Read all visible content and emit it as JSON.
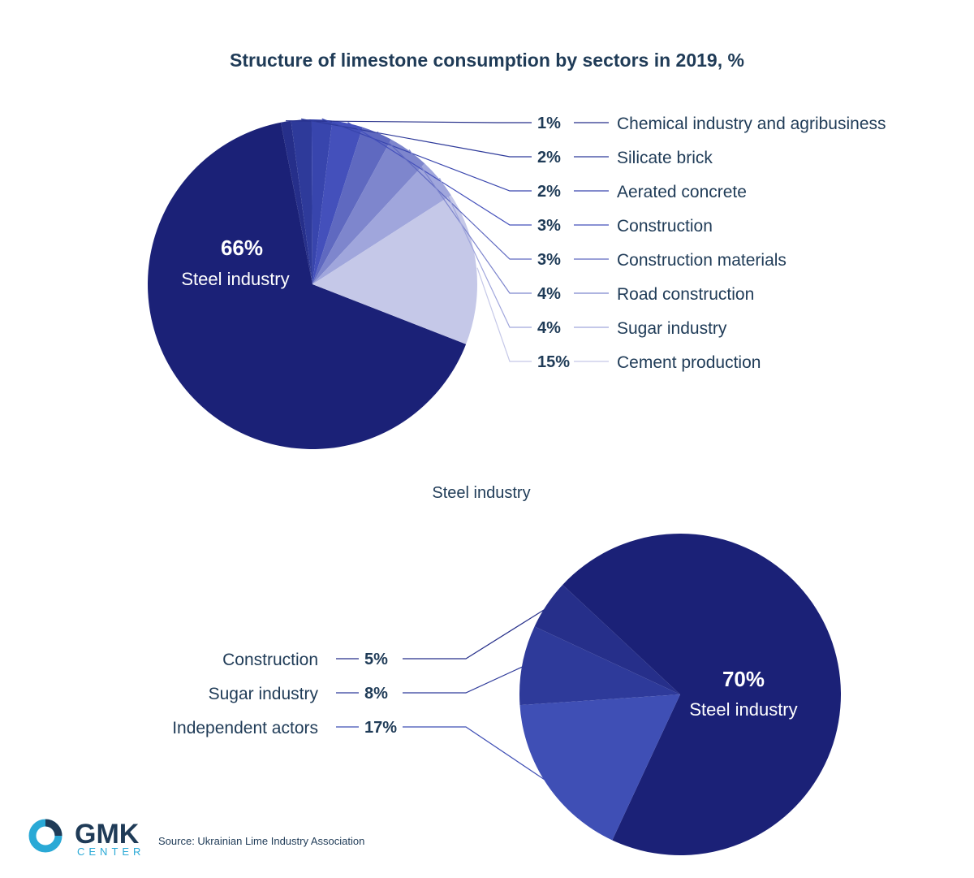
{
  "chart_data": [
    {
      "type": "pie",
      "title": "Structure of limestone consumption by sectors in 2019, %",
      "slices": [
        {
          "label": "Steel industry",
          "value": 66,
          "color": "#1b2177"
        },
        {
          "label": "Chemical industry and agribusiness",
          "value": 1,
          "color": "#262f8a"
        },
        {
          "label": "Silicate brick",
          "value": 2,
          "color": "#2e3a9a"
        },
        {
          "label": "Aerated concrete",
          "value": 2,
          "color": "#3845ad"
        },
        {
          "label": "Construction",
          "value": 3,
          "color": "#4450bb"
        },
        {
          "label": "Construction materials",
          "value": 3,
          "color": "#5f69c0"
        },
        {
          "label": "Road construction",
          "value": 4,
          "color": "#7e86cd"
        },
        {
          "label": "Sugar industry",
          "value": 4,
          "color": "#a0a6dc"
        },
        {
          "label": "Cement production",
          "value": 15,
          "color": "#c5c8e8"
        }
      ],
      "pct_labels": [
        "66%",
        "1%",
        "2%",
        "2%",
        "3%",
        "3%",
        "4%",
        "4%",
        "15%"
      ]
    },
    {
      "type": "pie",
      "title": "Steel industry",
      "slices": [
        {
          "label": "Steel industry",
          "value": 70,
          "color": "#1b2177"
        },
        {
          "label": "Construction",
          "value": 5,
          "color": "#262f8a"
        },
        {
          "label": "Sugar industry",
          "value": 8,
          "color": "#2e3a9a"
        },
        {
          "label": "Independent actors",
          "value": 17,
          "color": "#3f4fb5"
        }
      ],
      "pct_labels": [
        "70%",
        "5%",
        "8%",
        "17%"
      ]
    }
  ],
  "logo": {
    "main": "GMK",
    "sub": "CENTER"
  },
  "source": "Source: Ukrainian Lime Industry Association"
}
